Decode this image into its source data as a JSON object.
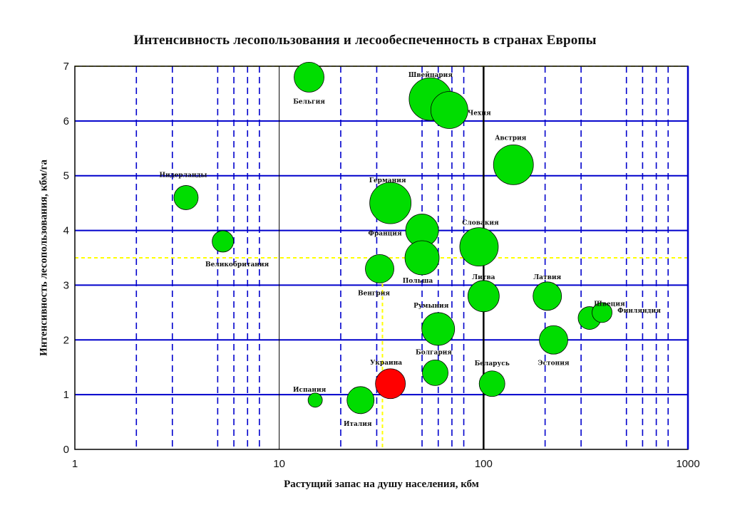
{
  "chart_data": {
    "type": "scatter",
    "title": "Интенсивность лесопользования и лесообеспеченность в странах Европы",
    "xlabel": "Растущий запас на душу населения, кбм",
    "ylabel": "Интенсивность лесопользования, кбм/га",
    "x_scale": "log",
    "xlim": [
      1,
      1000
    ],
    "ylim": [
      0,
      7
    ],
    "x_ticks": [
      "1",
      "10",
      "100",
      "1000"
    ],
    "y_ticks": [
      "0",
      "1",
      "2",
      "3",
      "4",
      "5",
      "6",
      "7"
    ],
    "grid": true,
    "reference_lines": {
      "x": 32,
      "y": 3.5,
      "color": "#ffff00"
    },
    "colors": {
      "bubble": "#00dd00",
      "highlight": "#ff0000",
      "grid": "#0000cc",
      "reference": "#ffff00"
    },
    "points": [
      {
        "label": "Бельгия",
        "x": 14,
        "y": 6.8,
        "size": 2.1
      },
      {
        "label": "Швейцария",
        "x": 55,
        "y": 6.4,
        "size": 3
      },
      {
        "label": "Чехия",
        "x": 68,
        "y": 6.2,
        "size": 2.6
      },
      {
        "label": "Австрия",
        "x": 140,
        "y": 5.2,
        "size": 2.8
      },
      {
        "label": "Нидерланды",
        "x": 3.5,
        "y": 4.6,
        "size": 1.7
      },
      {
        "label": "Германия",
        "x": 35,
        "y": 4.5,
        "size": 2.9
      },
      {
        "label": "Великобритания",
        "x": 5.3,
        "y": 3.8,
        "size": 1.5
      },
      {
        "label": "Франция",
        "x": 50,
        "y": 4,
        "size": 2.3
      },
      {
        "label": "Словакия",
        "x": 95,
        "y": 3.7,
        "size": 2.7
      },
      {
        "label": "Польша",
        "x": 50,
        "y": 3.5,
        "size": 2.4
      },
      {
        "label": "Венгрия",
        "x": 31,
        "y": 3.3,
        "size": 2
      },
      {
        "label": "Литва",
        "x": 100,
        "y": 2.8,
        "size": 2.2
      },
      {
        "label": "Латвия",
        "x": 205,
        "y": 2.8,
        "size": 2
      },
      {
        "label": "Швеция",
        "x": 330,
        "y": 2.4,
        "size": 1.6
      },
      {
        "label": "Финляндия",
        "x": 380,
        "y": 2.5,
        "size": 1.4
      },
      {
        "label": "Румыния",
        "x": 60,
        "y": 2.2,
        "size": 2.3
      },
      {
        "label": "Эстония",
        "x": 220,
        "y": 2,
        "size": 2
      },
      {
        "label": "Болгария",
        "x": 58,
        "y": 1.4,
        "size": 1.8
      },
      {
        "label": "Беларусь",
        "x": 110,
        "y": 1.2,
        "size": 1.8
      },
      {
        "label": "Украина",
        "x": 35,
        "y": 1.2,
        "size": 2.1,
        "highlight": true
      },
      {
        "label": "Италия",
        "x": 25,
        "y": 0.9,
        "size": 1.9
      },
      {
        "label": "Испания",
        "x": 15,
        "y": 0.9,
        "size": 1
      }
    ]
  }
}
